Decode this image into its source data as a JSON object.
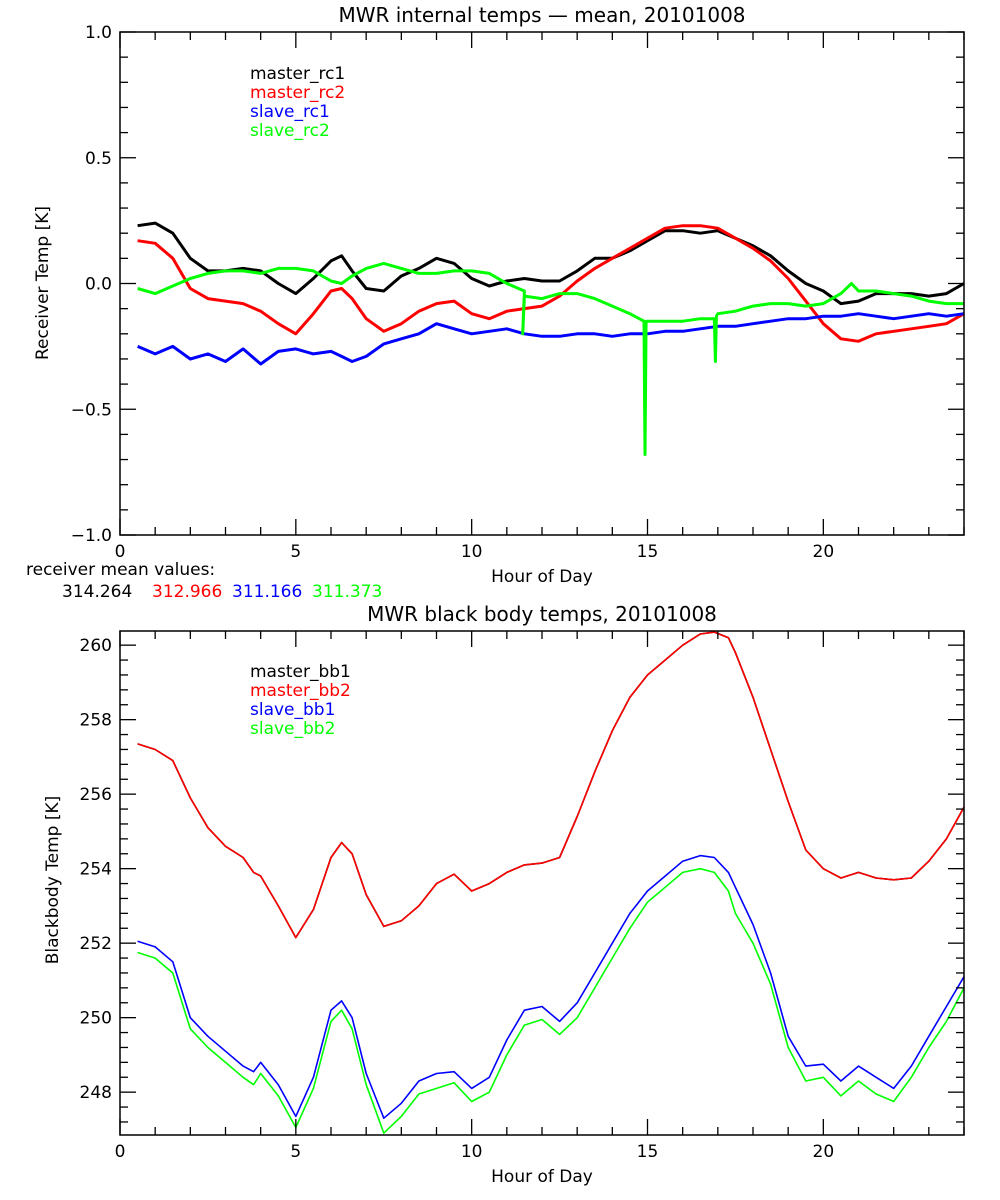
{
  "chart_data": [
    {
      "type": "line",
      "title": "MWR internal temps — mean, 20101008",
      "xlabel": "Hour of Day",
      "ylabel": "Receiver Temp [K]",
      "xlim": [
        0,
        24
      ],
      "ylim": [
        -1.0,
        1.0
      ],
      "xticks": [
        0,
        5,
        10,
        15,
        20
      ],
      "xtick_labels": [
        "0",
        "5",
        "10",
        "15",
        "20"
      ],
      "yticks": [
        -1.0,
        -0.5,
        0.0,
        0.5,
        1.0
      ],
      "ytick_labels": [
        "−1.0",
        "−0.5",
        "0.0",
        "0.5",
        "1.0"
      ],
      "grid": false,
      "legend_position": "top-left (inside)",
      "series": [
        {
          "name": "master_rc1",
          "color": "#000000",
          "x": [
            0.5,
            1.0,
            1.5,
            2.0,
            2.5,
            3.0,
            3.5,
            4.0,
            4.5,
            5.0,
            5.5,
            6.0,
            6.3,
            6.6,
            7.0,
            7.5,
            8.0,
            8.5,
            9.0,
            9.5,
            10.0,
            10.5,
            11.0,
            11.5,
            12.0,
            12.5,
            13.0,
            13.5,
            14.0,
            14.5,
            15.0,
            15.5,
            16.0,
            16.5,
            17.0,
            17.5,
            18.0,
            18.5,
            19.0,
            19.5,
            20.0,
            20.5,
            21.0,
            21.5,
            22.0,
            22.5,
            23.0,
            23.5,
            24.0
          ],
          "y": [
            0.23,
            0.24,
            0.2,
            0.1,
            0.05,
            0.05,
            0.06,
            0.05,
            0.0,
            -0.04,
            0.02,
            0.09,
            0.11,
            0.05,
            -0.02,
            -0.03,
            0.03,
            0.06,
            0.1,
            0.08,
            0.02,
            -0.01,
            0.01,
            0.02,
            0.01,
            0.01,
            0.05,
            0.1,
            0.1,
            0.13,
            0.17,
            0.21,
            0.21,
            0.2,
            0.21,
            0.18,
            0.15,
            0.11,
            0.05,
            0.0,
            -0.03,
            -0.08,
            -0.07,
            -0.04,
            -0.04,
            -0.04,
            -0.05,
            -0.04,
            0.0
          ]
        },
        {
          "name": "master_rc2",
          "color": "#ff0000",
          "x": [
            0.5,
            1.0,
            1.5,
            2.0,
            2.5,
            3.0,
            3.5,
            4.0,
            4.5,
            5.0,
            5.5,
            6.0,
            6.3,
            6.6,
            7.0,
            7.5,
            8.0,
            8.5,
            9.0,
            9.5,
            10.0,
            10.5,
            11.0,
            11.5,
            12.0,
            12.5,
            13.0,
            13.5,
            14.0,
            14.5,
            15.0,
            15.5,
            16.0,
            16.5,
            17.0,
            17.5,
            18.0,
            18.5,
            19.0,
            19.5,
            20.0,
            20.5,
            21.0,
            21.5,
            22.0,
            22.5,
            23.0,
            23.5,
            24.0
          ],
          "y": [
            0.17,
            0.16,
            0.1,
            -0.02,
            -0.06,
            -0.07,
            -0.08,
            -0.11,
            -0.16,
            -0.2,
            -0.12,
            -0.03,
            -0.02,
            -0.06,
            -0.14,
            -0.19,
            -0.16,
            -0.11,
            -0.08,
            -0.07,
            -0.12,
            -0.14,
            -0.11,
            -0.1,
            -0.09,
            -0.05,
            0.01,
            0.06,
            0.1,
            0.14,
            0.18,
            0.22,
            0.23,
            0.23,
            0.22,
            0.18,
            0.14,
            0.09,
            0.02,
            -0.07,
            -0.16,
            -0.22,
            -0.23,
            -0.2,
            -0.19,
            -0.18,
            -0.17,
            -0.16,
            -0.12
          ]
        },
        {
          "name": "slave_rc1",
          "color": "#0000ff",
          "x": [
            0.5,
            1.0,
            1.5,
            2.0,
            2.5,
            3.0,
            3.5,
            4.0,
            4.5,
            5.0,
            5.5,
            6.0,
            6.3,
            6.6,
            7.0,
            7.5,
            8.0,
            8.5,
            9.0,
            9.5,
            10.0,
            10.5,
            11.0,
            11.5,
            12.0,
            12.5,
            13.0,
            13.5,
            14.0,
            14.5,
            15.0,
            15.5,
            16.0,
            16.5,
            17.0,
            17.5,
            18.0,
            18.5,
            19.0,
            19.5,
            20.0,
            20.5,
            21.0,
            21.5,
            22.0,
            22.5,
            23.0,
            23.5,
            24.0
          ],
          "y": [
            -0.25,
            -0.28,
            -0.25,
            -0.3,
            -0.28,
            -0.31,
            -0.26,
            -0.32,
            -0.27,
            -0.26,
            -0.28,
            -0.27,
            -0.29,
            -0.31,
            -0.29,
            -0.24,
            -0.22,
            -0.2,
            -0.16,
            -0.18,
            -0.2,
            -0.19,
            -0.18,
            -0.2,
            -0.21,
            -0.21,
            -0.2,
            -0.2,
            -0.21,
            -0.2,
            -0.2,
            -0.19,
            -0.19,
            -0.18,
            -0.17,
            -0.17,
            -0.16,
            -0.15,
            -0.14,
            -0.14,
            -0.13,
            -0.13,
            -0.12,
            -0.13,
            -0.14,
            -0.13,
            -0.12,
            -0.13,
            -0.12
          ]
        },
        {
          "name": "slave_rc2",
          "color": "#00ff00",
          "x": [
            0.5,
            1.0,
            1.5,
            2.0,
            2.5,
            3.0,
            3.5,
            4.0,
            4.5,
            5.0,
            5.5,
            6.0,
            6.3,
            6.6,
            7.0,
            7.5,
            8.0,
            8.5,
            9.0,
            9.5,
            10.0,
            10.5,
            11.0,
            11.5,
            11.45,
            11.5,
            12.0,
            12.5,
            13.0,
            13.5,
            14.0,
            14.5,
            14.9,
            14.93,
            14.96,
            15.0,
            15.5,
            16.0,
            16.5,
            16.9,
            16.93,
            16.96,
            17.0,
            17.5,
            18.0,
            18.5,
            19.0,
            19.5,
            20.0,
            20.5,
            20.8,
            21.0,
            21.5,
            22.0,
            22.5,
            23.0,
            23.5,
            24.0
          ],
          "y": [
            -0.02,
            -0.04,
            -0.01,
            0.02,
            0.04,
            0.05,
            0.05,
            0.04,
            0.06,
            0.06,
            0.05,
            0.01,
            0.0,
            0.03,
            0.06,
            0.08,
            0.06,
            0.04,
            0.04,
            0.05,
            0.05,
            0.04,
            0.0,
            -0.03,
            -0.2,
            -0.05,
            -0.06,
            -0.04,
            -0.04,
            -0.06,
            -0.09,
            -0.12,
            -0.15,
            -0.68,
            -0.15,
            -0.15,
            -0.15,
            -0.15,
            -0.14,
            -0.14,
            -0.31,
            -0.13,
            -0.12,
            -0.11,
            -0.09,
            -0.08,
            -0.08,
            -0.09,
            -0.08,
            -0.04,
            0.0,
            -0.03,
            -0.03,
            -0.04,
            -0.05,
            -0.07,
            -0.08,
            -0.08
          ]
        }
      ],
      "annotations": {
        "label": "receiver mean values:",
        "values": [
          {
            "text": "314.264",
            "color": "#000000"
          },
          {
            "text": "312.966",
            "color": "#ff0000"
          },
          {
            "text": "311.166",
            "color": "#0000ff"
          },
          {
            "text": "311.373",
            "color": "#00ff00"
          }
        ]
      }
    },
    {
      "type": "line",
      "title": "MWR black body temps, 20101008",
      "xlabel": "Hour of Day",
      "ylabel": "Blackbody Temp [K]",
      "xlim": [
        0,
        24
      ],
      "ylim": [
        246.85,
        260.38
      ],
      "xticks": [
        0,
        5,
        10,
        15,
        20
      ],
      "xtick_labels": [
        "0",
        "5",
        "10",
        "15",
        "20"
      ],
      "yticks": [
        248,
        250,
        252,
        254,
        256,
        258,
        260
      ],
      "ytick_labels": [
        "248",
        "250",
        "252",
        "254",
        "256",
        "258",
        "260"
      ],
      "grid": false,
      "legend_position": "top-left (inside)",
      "series": [
        {
          "name": "master_bb1",
          "color": "#000000",
          "x": [
            0.5,
            1.0,
            1.5,
            2.0,
            2.5,
            3.0,
            3.5,
            3.8,
            4.0,
            4.5,
            5.0,
            5.5,
            6.0,
            6.3,
            6.6,
            7.0,
            7.5,
            8.0,
            8.5,
            9.0,
            9.5,
            10.0,
            10.5,
            11.0,
            11.5,
            12.0,
            12.5,
            13.0,
            13.5,
            14.0,
            14.5,
            15.0,
            15.5,
            16.0,
            16.5,
            16.9,
            17.3,
            17.5,
            18.0,
            18.5,
            19.0,
            19.5,
            20.0,
            20.5,
            21.0,
            21.5,
            22.0,
            22.5,
            23.0,
            23.5,
            24.0
          ],
          "y": [
            257.35,
            257.2,
            256.9,
            255.9,
            255.1,
            254.6,
            254.3,
            253.9,
            253.8,
            253.0,
            252.15,
            252.9,
            254.3,
            254.7,
            254.4,
            253.3,
            252.45,
            252.6,
            253.0,
            253.6,
            253.85,
            253.4,
            253.6,
            253.9,
            254.1,
            254.15,
            254.3,
            255.4,
            256.6,
            257.7,
            258.6,
            259.2,
            259.6,
            260.0,
            260.3,
            260.35,
            260.2,
            259.8,
            258.6,
            257.2,
            255.8,
            254.5,
            254.0,
            253.75,
            253.9,
            253.75,
            253.7,
            253.75,
            254.2,
            254.8,
            255.65
          ]
        },
        {
          "name": "master_bb2",
          "color": "#ff0000",
          "x": [
            0.5,
            1.0,
            1.5,
            2.0,
            2.5,
            3.0,
            3.5,
            3.8,
            4.0,
            4.5,
            5.0,
            5.5,
            6.0,
            6.3,
            6.6,
            7.0,
            7.5,
            8.0,
            8.5,
            9.0,
            9.5,
            10.0,
            10.5,
            11.0,
            11.5,
            12.0,
            12.5,
            13.0,
            13.5,
            14.0,
            14.5,
            15.0,
            15.5,
            16.0,
            16.5,
            16.9,
            17.3,
            17.5,
            18.0,
            18.5,
            19.0,
            19.5,
            20.0,
            20.5,
            21.0,
            21.5,
            22.0,
            22.5,
            23.0,
            23.5,
            24.0
          ],
          "y": [
            257.35,
            257.2,
            256.9,
            255.9,
            255.1,
            254.6,
            254.3,
            253.9,
            253.8,
            253.0,
            252.15,
            252.9,
            254.3,
            254.7,
            254.4,
            253.3,
            252.45,
            252.6,
            253.0,
            253.6,
            253.85,
            253.4,
            253.6,
            253.9,
            254.1,
            254.15,
            254.3,
            255.4,
            256.6,
            257.7,
            258.6,
            259.2,
            259.6,
            260.0,
            260.3,
            260.35,
            260.2,
            259.8,
            258.6,
            257.2,
            255.8,
            254.5,
            254.0,
            253.75,
            253.9,
            253.75,
            253.7,
            253.75,
            254.2,
            254.8,
            255.65
          ]
        },
        {
          "name": "slave_bb1",
          "color": "#0000ff",
          "x": [
            0.5,
            1.0,
            1.5,
            2.0,
            2.5,
            3.0,
            3.5,
            3.8,
            4.0,
            4.5,
            5.0,
            5.5,
            6.0,
            6.3,
            6.6,
            7.0,
            7.5,
            8.0,
            8.5,
            9.0,
            9.5,
            10.0,
            10.5,
            11.0,
            11.5,
            12.0,
            12.5,
            13.0,
            13.5,
            14.0,
            14.5,
            15.0,
            15.5,
            16.0,
            16.5,
            16.9,
            17.3,
            17.5,
            18.0,
            18.5,
            19.0,
            19.5,
            20.0,
            20.5,
            21.0,
            21.5,
            22.0,
            22.5,
            23.0,
            23.5,
            24.0
          ],
          "y": [
            252.05,
            251.9,
            251.5,
            250.0,
            249.5,
            249.1,
            248.7,
            248.55,
            248.8,
            248.2,
            247.35,
            248.4,
            250.2,
            250.45,
            250.0,
            248.5,
            247.3,
            247.7,
            248.3,
            248.5,
            248.55,
            248.1,
            248.4,
            249.4,
            250.2,
            250.3,
            249.9,
            250.4,
            251.2,
            252.0,
            252.8,
            253.4,
            253.8,
            254.2,
            254.35,
            254.3,
            253.9,
            253.5,
            252.5,
            251.2,
            249.5,
            248.7,
            248.75,
            248.3,
            248.7,
            248.4,
            248.1,
            248.7,
            249.5,
            250.3,
            251.1
          ]
        },
        {
          "name": "slave_bb2",
          "color": "#00ff00",
          "x": [
            0.5,
            1.0,
            1.5,
            2.0,
            2.5,
            3.0,
            3.5,
            3.8,
            4.0,
            4.5,
            5.0,
            5.5,
            6.0,
            6.3,
            6.6,
            7.0,
            7.5,
            8.0,
            8.5,
            9.0,
            9.5,
            10.0,
            10.5,
            11.0,
            11.5,
            12.0,
            12.5,
            13.0,
            13.5,
            14.0,
            14.5,
            15.0,
            15.5,
            16.0,
            16.5,
            16.9,
            17.3,
            17.5,
            18.0,
            18.5,
            19.0,
            19.5,
            20.0,
            20.5,
            21.0,
            21.5,
            22.0,
            22.5,
            23.0,
            23.5,
            24.0
          ],
          "y": [
            251.75,
            251.6,
            251.2,
            249.7,
            249.2,
            248.8,
            248.4,
            248.2,
            248.5,
            247.9,
            247.05,
            248.1,
            249.9,
            250.2,
            249.7,
            248.2,
            246.9,
            247.35,
            247.95,
            248.1,
            248.25,
            247.75,
            248.0,
            249.0,
            249.8,
            249.95,
            249.55,
            250.0,
            250.8,
            251.6,
            252.4,
            253.1,
            253.5,
            253.9,
            254.0,
            253.9,
            253.4,
            252.8,
            252.0,
            250.9,
            249.2,
            248.3,
            248.4,
            247.9,
            248.3,
            247.95,
            247.75,
            248.4,
            249.2,
            249.9,
            250.8
          ]
        }
      ]
    }
  ]
}
